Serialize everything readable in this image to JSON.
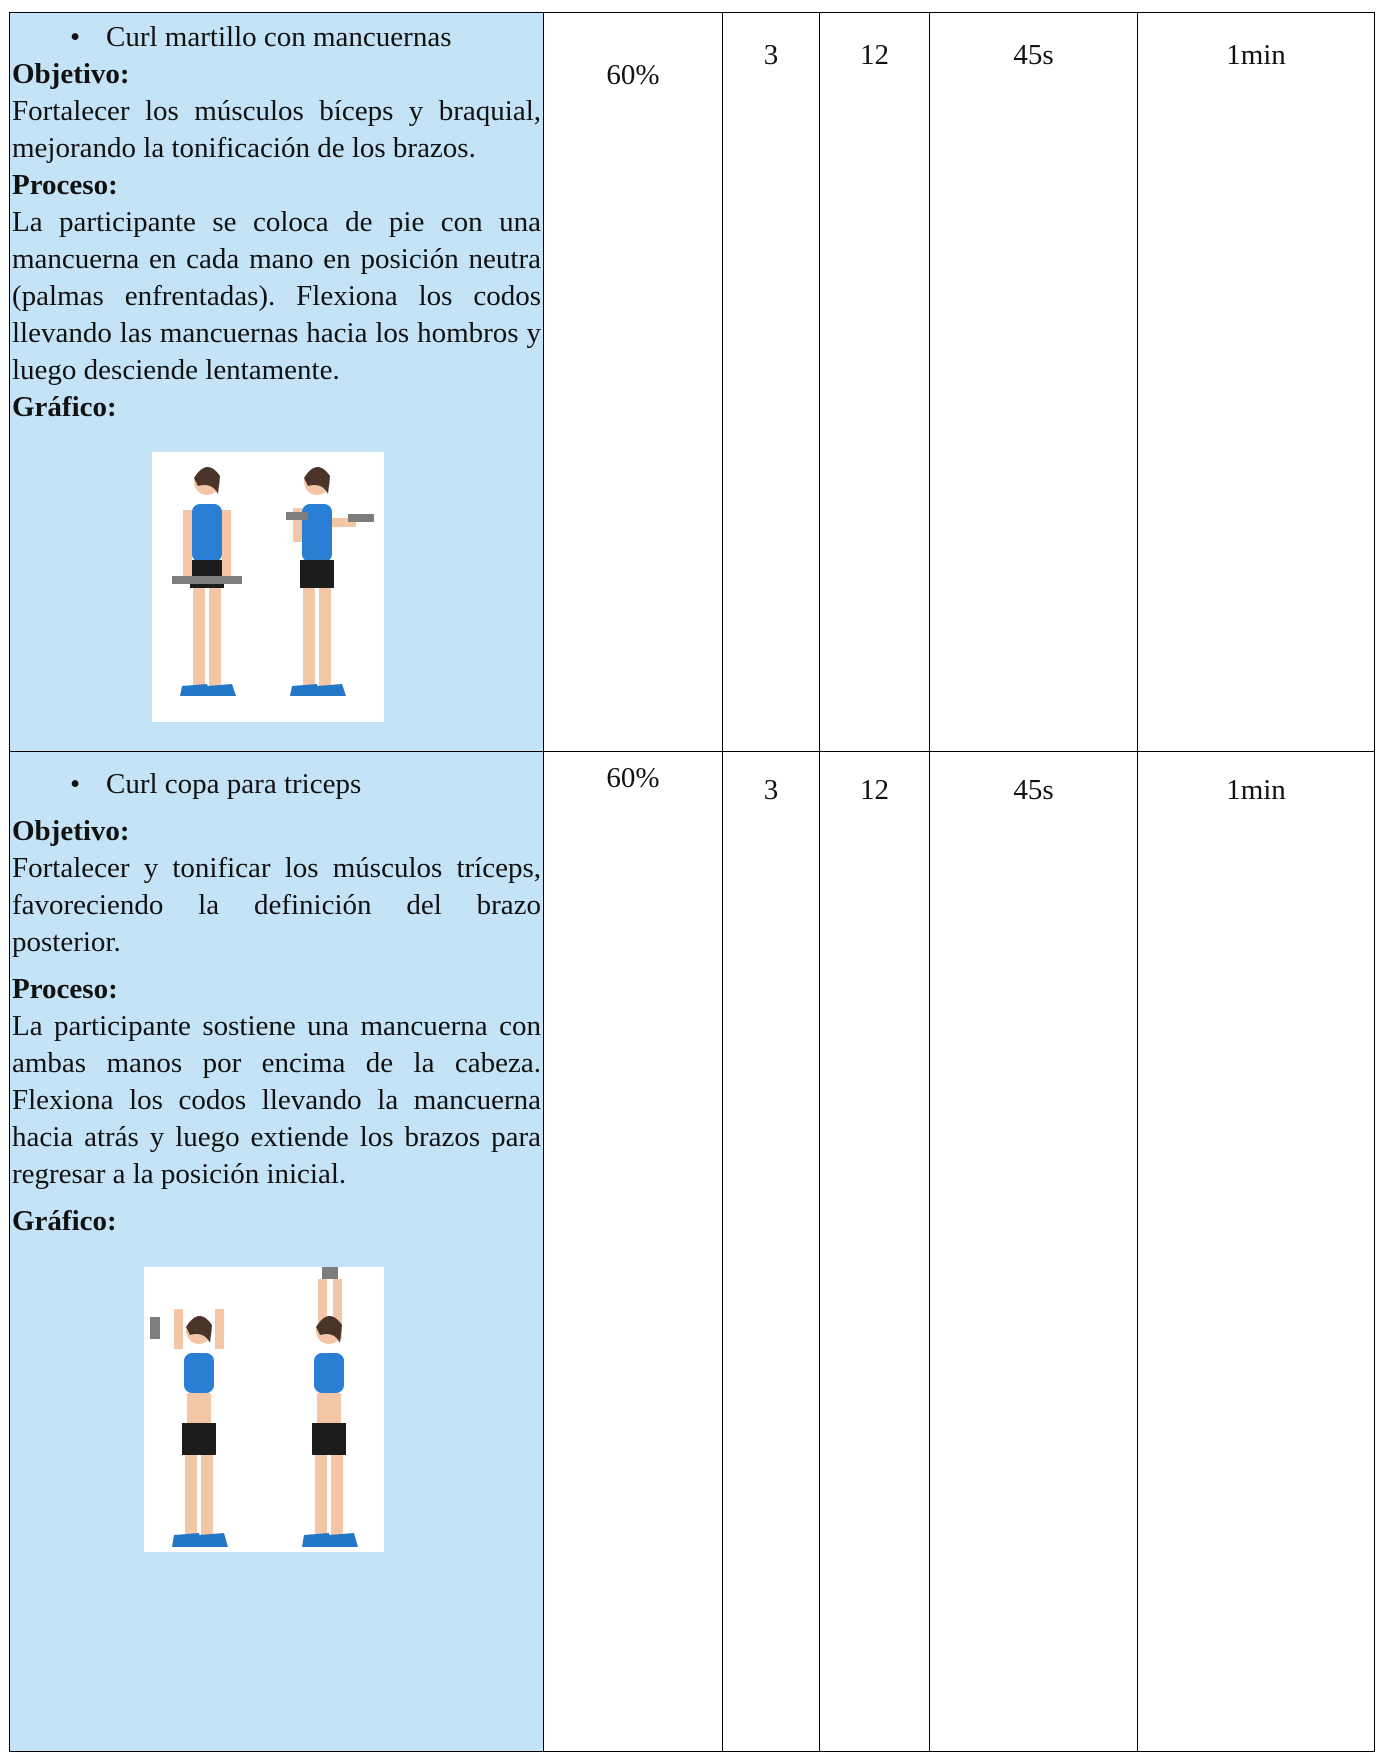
{
  "rows": [
    {
      "exercise": "Curl martillo con mancuernas",
      "objective_label": "Objetivo:",
      "objective": "Fortalecer los músculos bíceps y braquial, mejorando la tonificación de los brazos.",
      "process_label": "Proceso:",
      "process": "La participante se coloca de pie con una mancuerna en cada mano en posición neutra (palmas enfrentadas). Flexiona los codos llevando las mancuernas hacia los hombros y luego desciende lentamente.",
      "graphic_label": "Gráfico:",
      "intensity": "60%",
      "sets": "3",
      "reps": "12",
      "work": "45s",
      "rest": "1min"
    },
    {
      "exercise": "Curl copa para triceps",
      "objective_label": "Objetivo:",
      "objective": "Fortalecer y tonificar los músculos tríceps, favoreciendo la definición del brazo posterior.",
      "process_label": "Proceso:",
      "process": "La participante sostiene una mancuerna con ambas manos por encima de la cabeza. Flexiona los codos llevando la mancuerna hacia atrás y luego extiende los brazos para regresar a la posición inicial.",
      "graphic_label": "Gráfico:",
      "intensity": "60%",
      "sets": "3",
      "reps": "12",
      "work": "45s",
      "rest": "1min"
    }
  ]
}
